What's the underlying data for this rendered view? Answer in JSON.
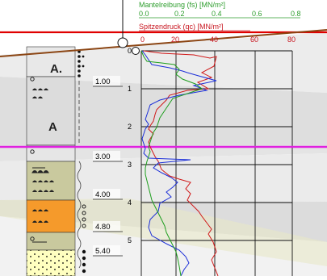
{
  "colors": {
    "background": "#ffffff",
    "axis_green": "#2e9e2e",
    "axis_red": "#c8141e",
    "ground_line": "#e00000",
    "terrain_line": "#8b4513",
    "marker_line": "#e020e0",
    "layer_light": "#ececec",
    "layer_grey": "#dcdcdc",
    "layer_olive": "#c8c8a0",
    "layer_orange": "#f59a2b",
    "layer_yellow": "#ffffc0",
    "qc_blue": "#1c2fd8",
    "fs_green": "#1e9e1e",
    "rf_red": "#d01818"
  },
  "header": {
    "friction_title": "Mantelreibung (fs) [MN/m²]",
    "friction_ticks": [
      "0.0",
      "0.2",
      "0.4",
      "0.6",
      "0.8"
    ],
    "cone_title": "Spitzendruck (qc) [MN/m²]",
    "cone_ticks": [
      "0",
      "20",
      "40",
      "60",
      "80"
    ]
  },
  "depth_axis": {
    "labels": [
      "0",
      "1",
      "2",
      "3",
      "4",
      "5"
    ]
  },
  "layer_boundaries": [
    {
      "label": "1.00"
    },
    {
      "label": "3.00"
    },
    {
      "label": "4.00"
    },
    {
      "label": "4.80"
    },
    {
      "label": "5.40"
    }
  ],
  "soil_symbols": {
    "upper_label": "A.",
    "lower_label": "A"
  }
}
